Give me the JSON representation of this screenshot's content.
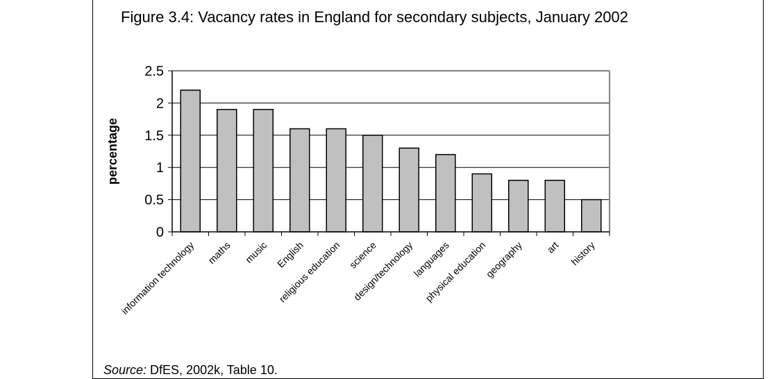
{
  "figure": {
    "title": "Figure 3.4: Vacancy rates in England for secondary subjects, January 2002",
    "source_label": "Source:",
    "source_text": " DfES, 2002k, Table 10."
  },
  "chart_data": {
    "type": "bar",
    "title": "Figure 3.4: Vacancy rates in England for secondary subjects, January 2002",
    "xlabel": "",
    "ylabel": "percentage",
    "categories": [
      "information technology",
      "maths",
      "music",
      "English",
      "religious education",
      "science",
      "design/technology",
      "languages",
      "physical education",
      "geography",
      "art",
      "history"
    ],
    "values": [
      2.2,
      1.9,
      1.9,
      1.6,
      1.6,
      1.5,
      1.3,
      1.2,
      0.9,
      0.8,
      0.8,
      0.5
    ],
    "ylim": [
      0,
      2.5
    ],
    "yticks": [
      "0",
      "0.5",
      "1",
      "1.5",
      "2",
      "2.5"
    ],
    "grid": true,
    "bar_color": "#c0c0c0",
    "plot_border_color": "#808080"
  }
}
